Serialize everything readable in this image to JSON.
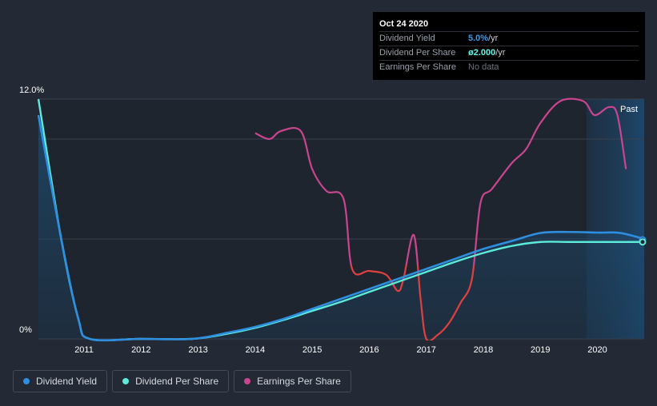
{
  "tooltip": {
    "date": "Oct 24 2020",
    "rows": [
      {
        "label": "Dividend Yield",
        "value": "5.0%",
        "unit": " /yr"
      },
      {
        "label": "Dividend Per Share",
        "value": "ø2.000",
        "unit": " /yr"
      },
      {
        "label": "Earnings Per Share",
        "value": "No data",
        "unit": ""
      }
    ]
  },
  "legend": [
    {
      "label": "Dividend Yield",
      "color": "#2e8fe0"
    },
    {
      "label": "Dividend Per Share",
      "color": "#5eeadb"
    },
    {
      "label": "Earnings Per Share",
      "color": "#c9458f"
    }
  ],
  "chart_data": {
    "type": "line",
    "y_axis": {
      "min": 0,
      "max": 12,
      "unit": "%",
      "tick_labels": [
        "12.0%",
        "0%"
      ]
    },
    "x_axis": {
      "min": 2010.2,
      "max": 2020.82,
      "ticks": [
        "2011",
        "2012",
        "2013",
        "2014",
        "2015",
        "2016",
        "2017",
        "2018",
        "2019",
        "2020"
      ]
    },
    "past_label": "Past",
    "grid": true,
    "series": [
      {
        "name": "Dividend Yield",
        "color": "#2e8fe0",
        "points": [
          [
            2010.2,
            11.2
          ],
          [
            2010.6,
            5.0
          ],
          [
            2010.9,
            1.0
          ],
          [
            2011.1,
            0
          ],
          [
            2012.0,
            0
          ],
          [
            2012.9,
            0
          ],
          [
            2013.5,
            0.3
          ],
          [
            2014.0,
            0.6
          ],
          [
            2014.5,
            1.0
          ],
          [
            2015.0,
            1.5
          ],
          [
            2015.5,
            2.0
          ],
          [
            2016.0,
            2.5
          ],
          [
            2016.5,
            3.0
          ],
          [
            2017.0,
            3.5
          ],
          [
            2017.5,
            4.0
          ],
          [
            2018.0,
            4.5
          ],
          [
            2018.5,
            4.9
          ],
          [
            2019.0,
            5.3
          ],
          [
            2019.5,
            5.35
          ],
          [
            2020.0,
            5.32
          ],
          [
            2020.4,
            5.3
          ],
          [
            2020.82,
            5.0
          ]
        ]
      },
      {
        "name": "Dividend Per Share",
        "color": "#5eeadb",
        "points": [
          [
            2010.2,
            12.0
          ],
          [
            2010.6,
            5.0
          ],
          [
            2010.9,
            1.0
          ],
          [
            2011.1,
            0
          ],
          [
            2012.0,
            0
          ],
          [
            2012.9,
            0
          ],
          [
            2013.5,
            0.25
          ],
          [
            2014.0,
            0.55
          ],
          [
            2014.5,
            0.95
          ],
          [
            2015.0,
            1.4
          ],
          [
            2015.5,
            1.85
          ],
          [
            2016.0,
            2.35
          ],
          [
            2016.5,
            2.85
          ],
          [
            2017.0,
            3.35
          ],
          [
            2017.5,
            3.85
          ],
          [
            2018.0,
            4.3
          ],
          [
            2018.5,
            4.65
          ],
          [
            2019.0,
            4.85
          ],
          [
            2019.5,
            4.85
          ],
          [
            2020.0,
            4.85
          ],
          [
            2020.82,
            4.85
          ]
        ]
      },
      {
        "name": "Earnings Per Share",
        "color": "#c9458f",
        "points": [
          [
            2014.0,
            10.3
          ],
          [
            2014.25,
            10.0
          ],
          [
            2014.45,
            10.4
          ],
          [
            2014.8,
            10.4
          ],
          [
            2015.0,
            8.5
          ],
          [
            2015.25,
            7.4
          ],
          [
            2015.55,
            7.0
          ],
          [
            2015.7,
            3.5
          ],
          [
            2016.0,
            3.4
          ],
          [
            2016.3,
            3.2
          ],
          [
            2016.5,
            2.4
          ],
          [
            2016.6,
            3.0
          ],
          [
            2016.78,
            5.2
          ],
          [
            2016.9,
            2.0
          ],
          [
            2017.0,
            0
          ],
          [
            2017.2,
            0.2
          ],
          [
            2017.4,
            0.8
          ],
          [
            2017.6,
            1.8
          ],
          [
            2017.8,
            3.0
          ],
          [
            2017.95,
            6.8
          ],
          [
            2018.15,
            7.5
          ],
          [
            2018.5,
            8.8
          ],
          [
            2018.75,
            9.5
          ],
          [
            2019.0,
            10.8
          ],
          [
            2019.35,
            11.9
          ],
          [
            2019.75,
            11.9
          ],
          [
            2019.95,
            11.2
          ],
          [
            2020.2,
            11.6
          ],
          [
            2020.35,
            11.2
          ],
          [
            2020.5,
            8.5
          ]
        ]
      }
    ]
  }
}
